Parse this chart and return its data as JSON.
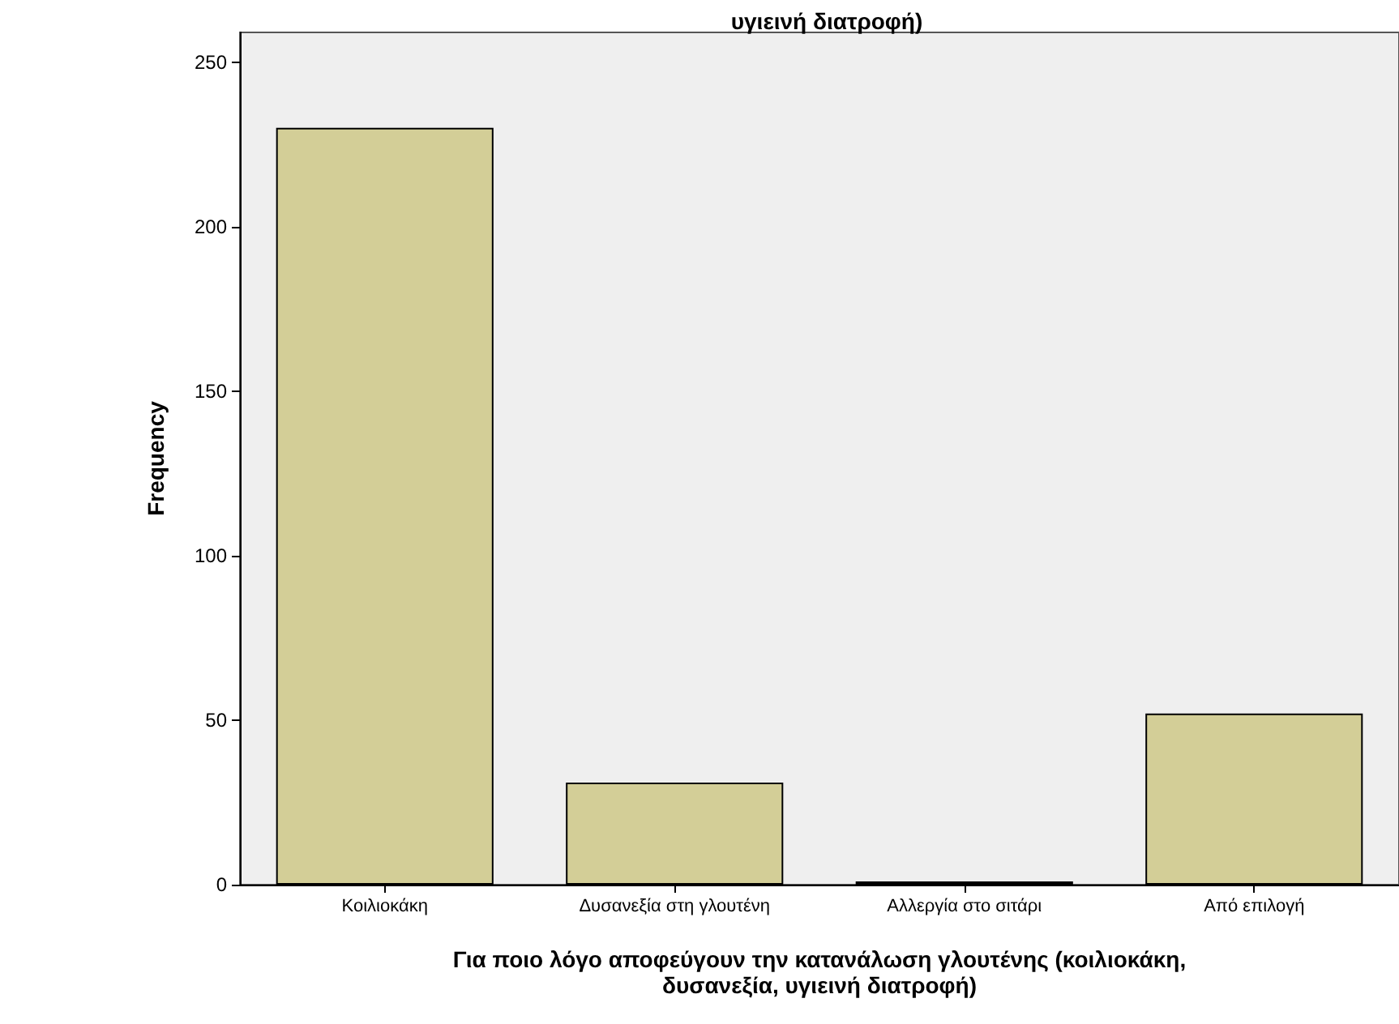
{
  "chart_data": {
    "type": "bar",
    "title": "υγιεινή διατροφή)",
    "xlabel": "Για ποιο λόγο αποφεύγουν την κατανάλωση γλουτένης (κοιλιοκάκη,\nδυσανεξία, υγιεινή διατροφή)",
    "ylabel": "Frequency",
    "categories": [
      "Κοιλιοκάκη",
      "Δυσανεξία στη γλουτένη",
      "Αλλεργία στο σιτάρι",
      "Από επιλογή"
    ],
    "values": [
      230,
      31,
      1,
      52
    ],
    "color": "#d3ce97",
    "ylim": [
      0,
      259
    ],
    "yticks": [
      0,
      50,
      100,
      150,
      200,
      250
    ],
    "grid": false
  }
}
